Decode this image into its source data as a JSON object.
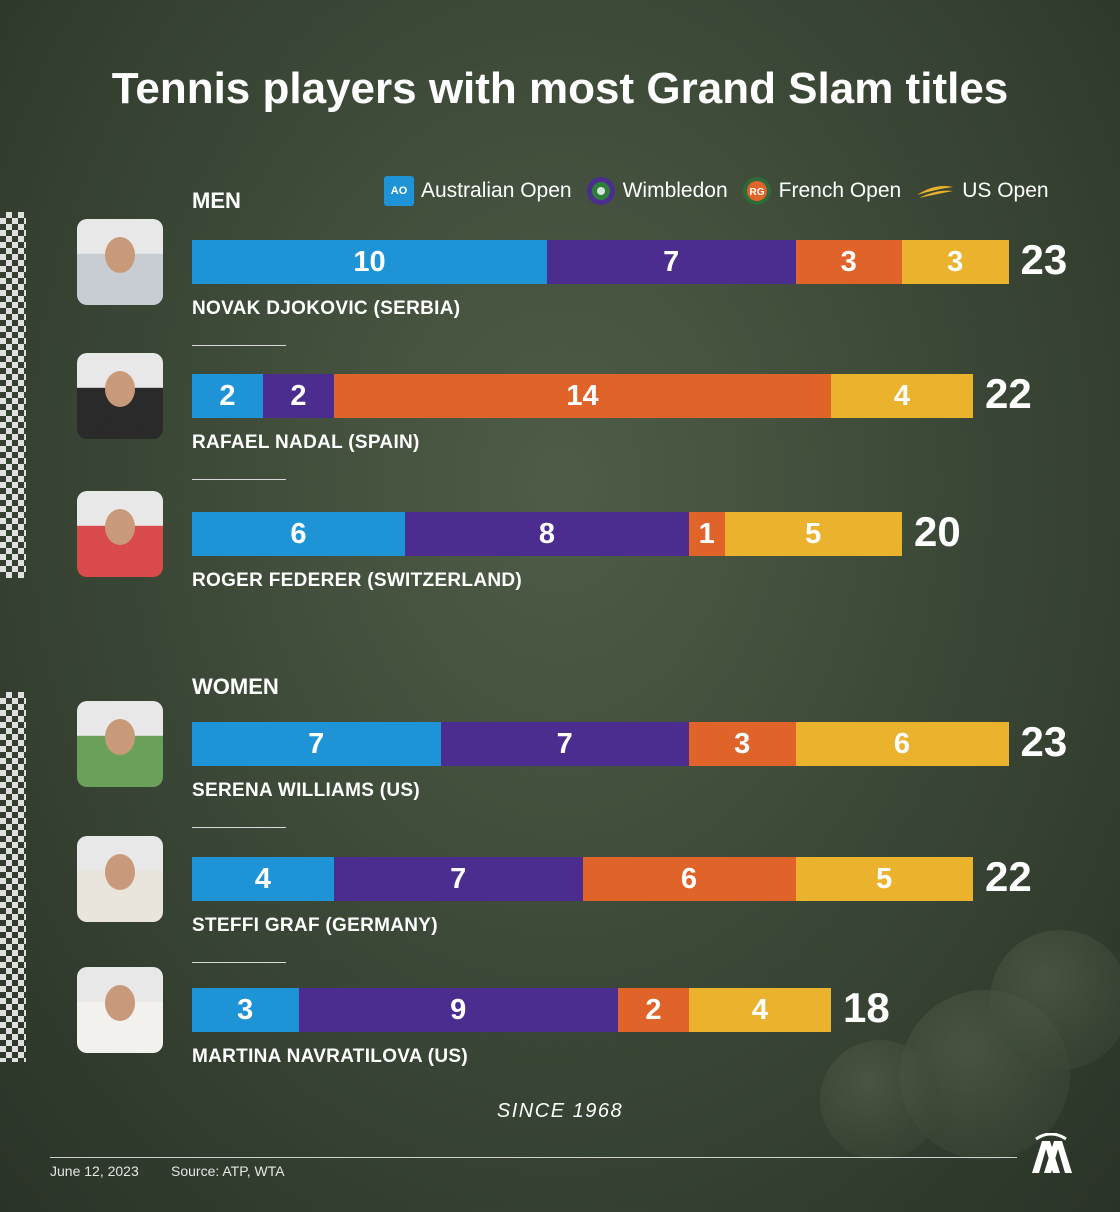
{
  "title": "Tennis players with most Grand Slam titles",
  "legend": [
    {
      "label": "Australian Open",
      "color": "#1e93d6",
      "icon": "ao-logo-icon"
    },
    {
      "label": "Wimbledon",
      "color": "#4a2d8f",
      "icon": "wimbledon-logo-icon"
    },
    {
      "label": "French Open",
      "color": "#e0632a",
      "icon": "french-open-logo-icon"
    },
    {
      "label": "US Open",
      "color": "#ebb22d",
      "icon": "us-open-logo-icon"
    }
  ],
  "chart_data": {
    "type": "bar",
    "stacked": true,
    "orientation": "horizontal",
    "series_names": [
      "Australian Open",
      "Wimbledon",
      "French Open",
      "US Open"
    ],
    "groups": [
      {
        "label": "MEN",
        "players": [
          {
            "name": "NOVAK DJOKOVIC (SERBIA)",
            "values": [
              10,
              7,
              3,
              3
            ],
            "total": 23
          },
          {
            "name": "RAFAEL NADAL (SPAIN)",
            "values": [
              2,
              2,
              14,
              4
            ],
            "total": 22
          },
          {
            "name": "ROGER FEDERER (SWITZERLAND)",
            "values": [
              6,
              8,
              1,
              5
            ],
            "total": 20
          }
        ]
      },
      {
        "label": "WOMEN",
        "players": [
          {
            "name": "SERENA WILLIAMS (US)",
            "values": [
              7,
              7,
              3,
              6
            ],
            "total": 23
          },
          {
            "name": "STEFFI GRAF (GERMANY)",
            "values": [
              4,
              7,
              6,
              5
            ],
            "total": 22
          },
          {
            "name": "MARTINA NAVRATILOVA (US)",
            "values": [
              3,
              9,
              2,
              4
            ],
            "total": 18
          }
        ]
      }
    ]
  },
  "since": "SINCE 1968",
  "footer": {
    "date": "June 12, 2023",
    "source": "Source: ATP, WTA"
  },
  "icons": {
    "legend_ao_text": "AO",
    "brand_logo": "aa-logo-icon"
  }
}
